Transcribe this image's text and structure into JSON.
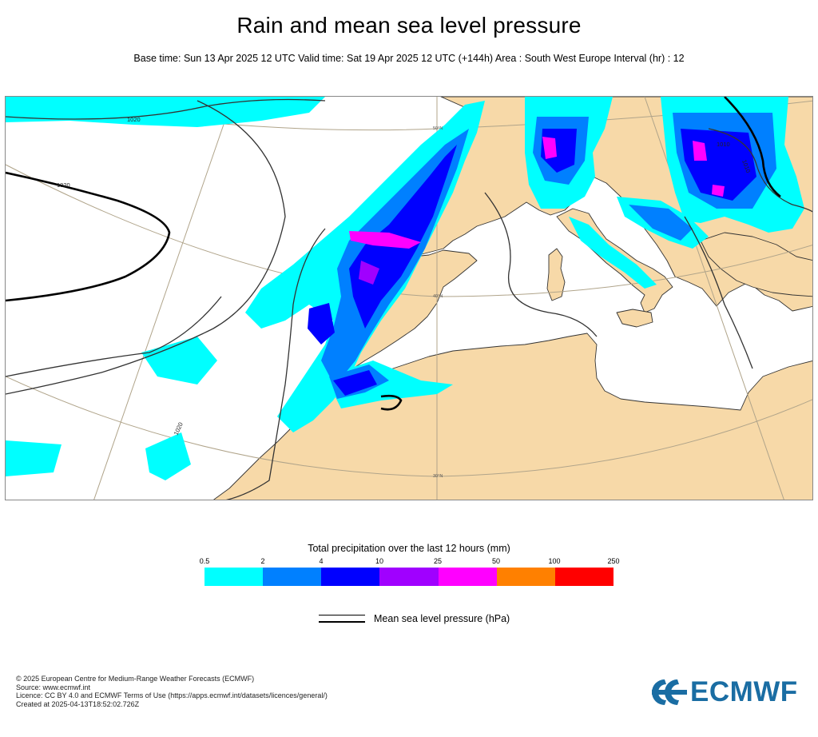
{
  "header": {
    "title": "Rain and mean sea level pressure",
    "subtitle": "Base time: Sun 13 Apr 2025 12 UTC Valid time: Sat 19 Apr 2025 12 UTC (+144h) Area : South West Europe Interval (hr) : 12"
  },
  "map": {
    "region": "South West Europe",
    "colors": {
      "land": "#f7d9a8",
      "sea": "#ffffff",
      "coast": "#333333",
      "graticule": "#b0a48a"
    },
    "latitude_labels": [
      "30°N",
      "40°N",
      "50°N"
    ],
    "isobar_labels": [
      "1020",
      "1020",
      "1020",
      "1010",
      "1010"
    ]
  },
  "legend": {
    "precip_title": "Total precipitation over the last 12 hours (mm)",
    "ticks": [
      "0.5",
      "2",
      "4",
      "10",
      "25",
      "50",
      "100",
      "250"
    ],
    "colors": [
      "#00ffff",
      "#0080ff",
      "#0000ff",
      "#a000ff",
      "#ff00ff",
      "#ff8000",
      "#ff0000"
    ],
    "mslp_label": "Mean sea level pressure (hPa)"
  },
  "credits": {
    "line1": "© 2025 European Centre for Medium-Range Weather Forecasts (ECMWF)",
    "line2": "Source: www.ecmwf.int",
    "line3": "Licence: CC BY 4.0 and ECMWF Terms of Use (https://apps.ecmwf.int/datasets/licences/general/)",
    "line4": "Created at 2025-04-13T18:52:02.726Z"
  },
  "logo": {
    "text": "ECMWF",
    "color": "#1a6da3"
  }
}
